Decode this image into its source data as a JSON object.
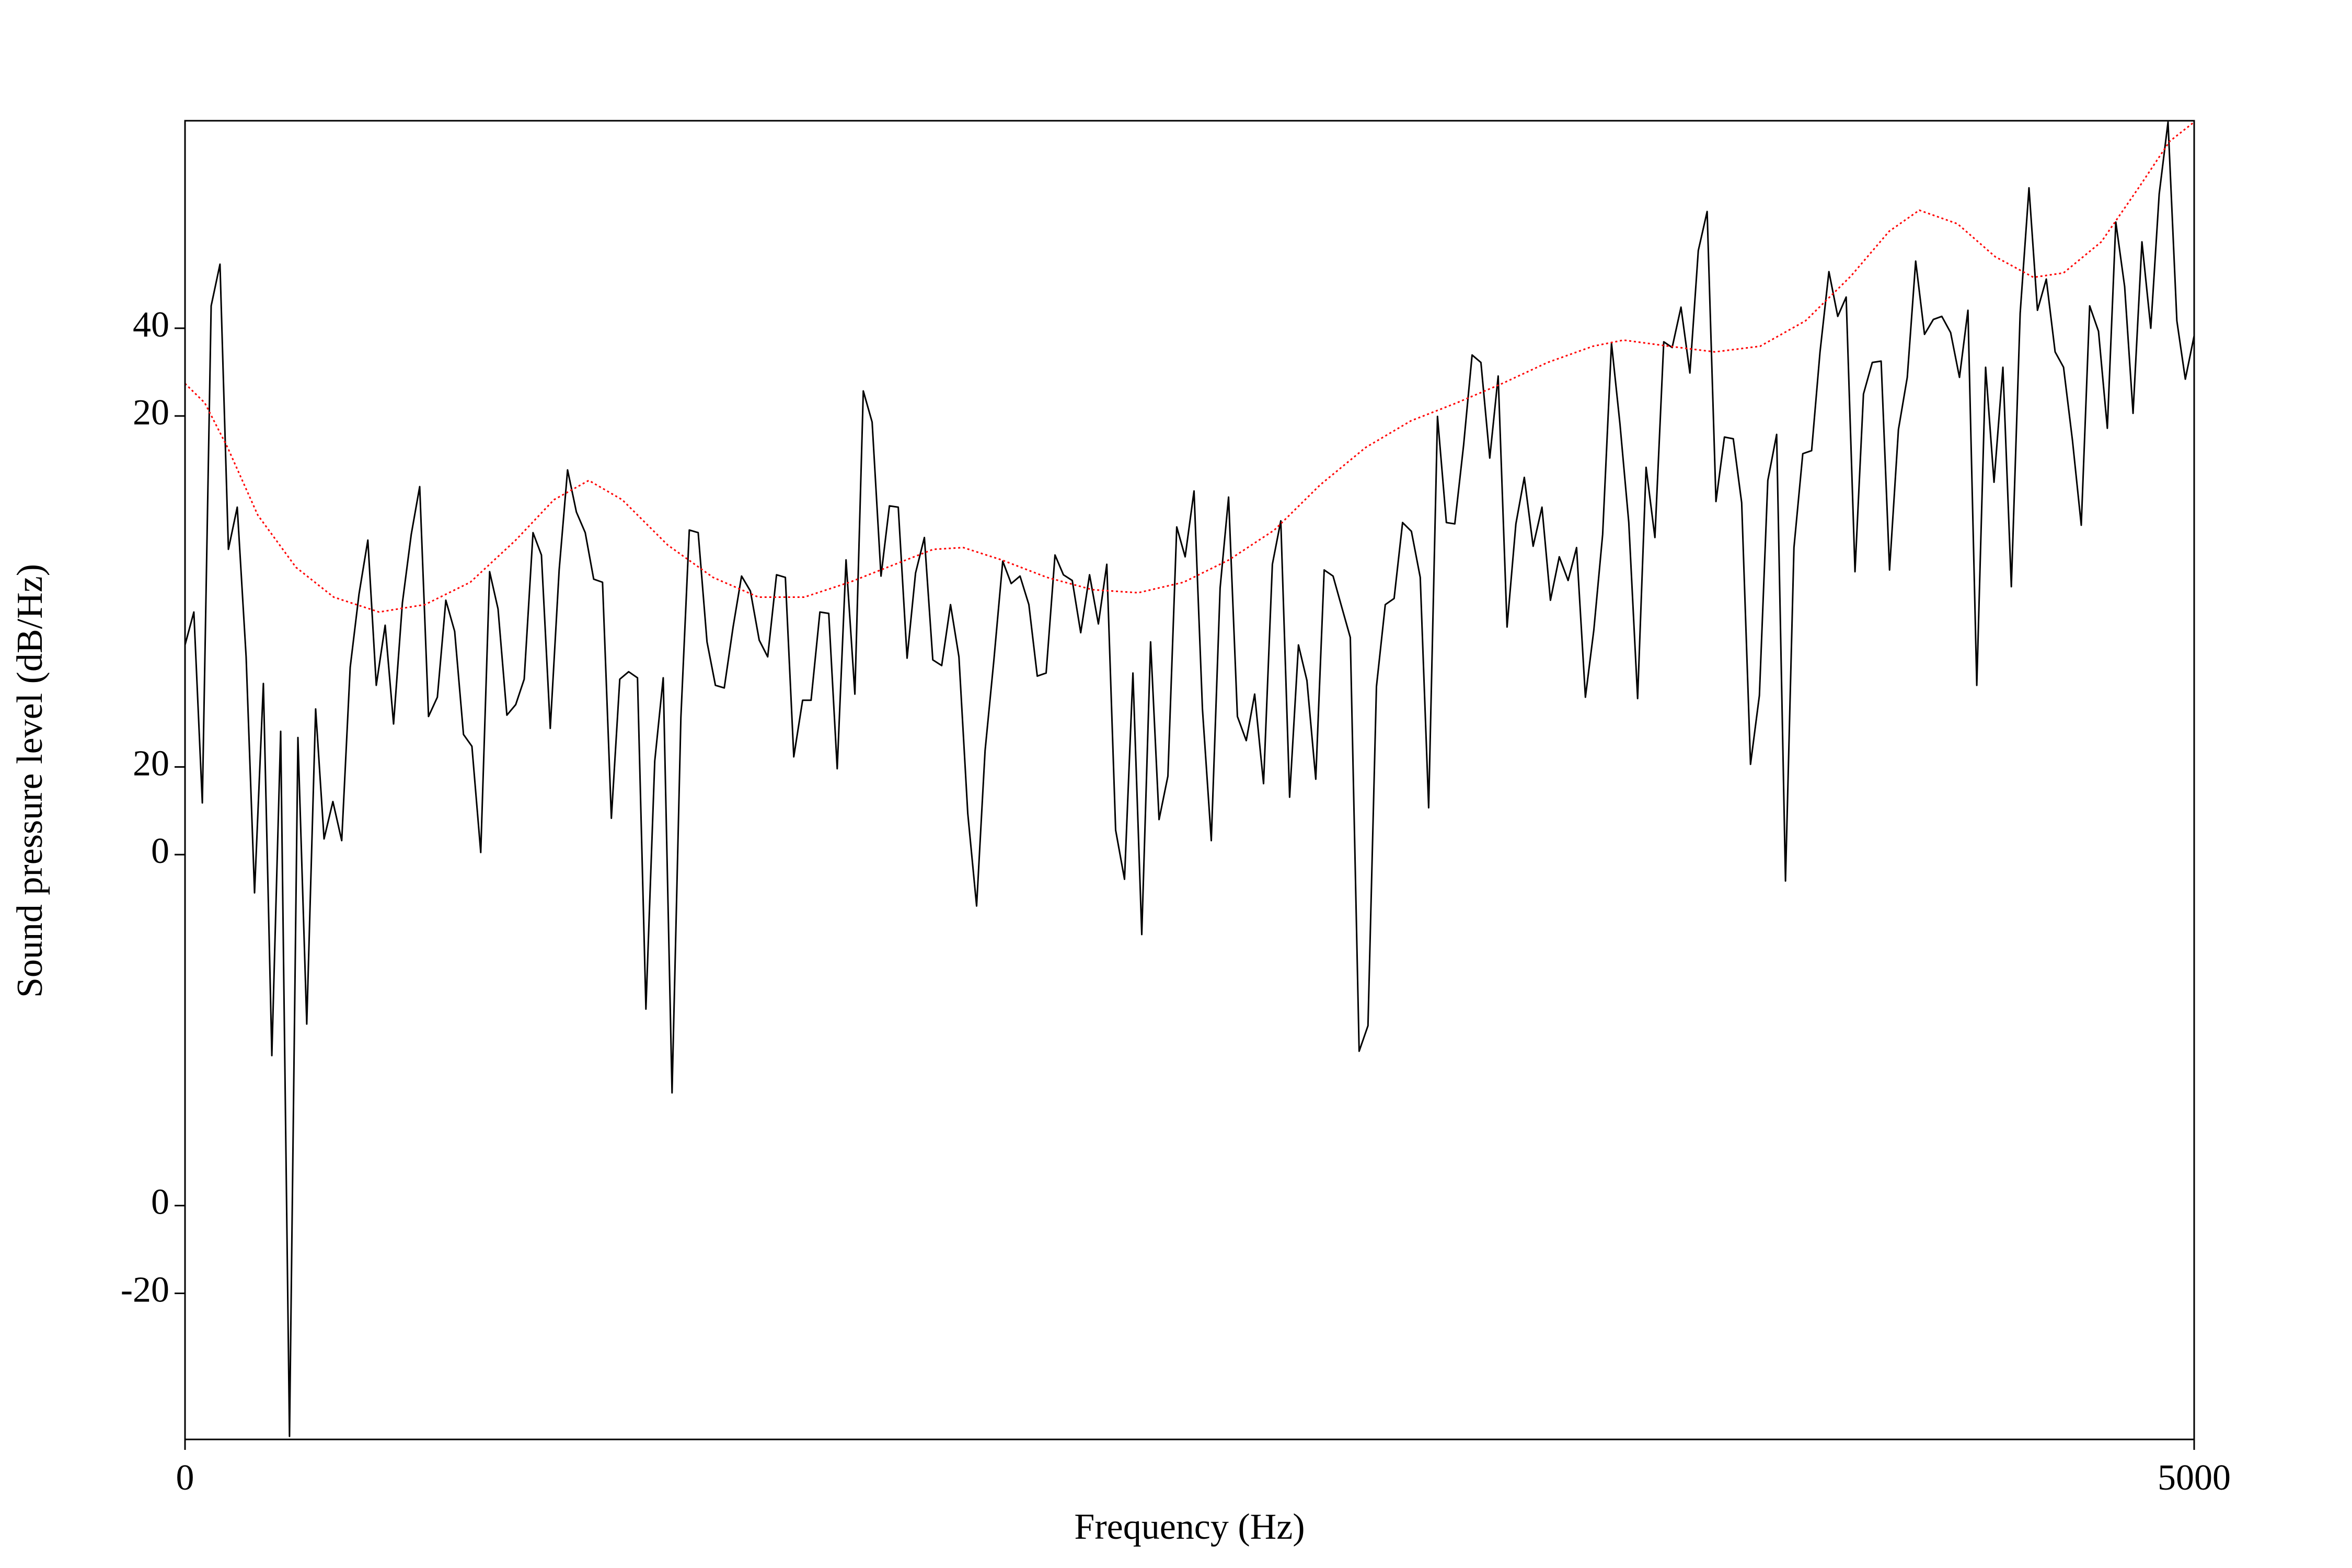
{
  "chart_data": {
    "type": "line",
    "xlabel": "Frequency (Hz)",
    "ylabel": "Sound pressure level (dB/Hz)",
    "xlim": [
      0,
      5000
    ],
    "xticks": [
      0,
      5000
    ],
    "ylim": [
      -213.3,
      87.3
    ],
    "yticks": [
      40,
      20,
      {
        "value": -60,
        "label": "20"
      },
      {
        "value": -80,
        "label": "0"
      },
      {
        "value": -160,
        "label": "0"
      },
      {
        "value": -180,
        "label": "-20"
      }
    ],
    "grid": false,
    "series": [
      {
        "color": "#000000",
        "style": "solid",
        "x": [
          0,
          22,
          43,
          65,
          87,
          108,
          130,
          152,
          173,
          195,
          216,
          238,
          260,
          281,
          303,
          325,
          346,
          368,
          390,
          411,
          433,
          455,
          476,
          498,
          519,
          541,
          563,
          584,
          606,
          628,
          649,
          671,
          693,
          714,
          736,
          758,
          779,
          801,
          823,
          844,
          866,
          887,
          909,
          931,
          952,
          974,
          996,
          1017,
          1039,
          1061,
          1082,
          1104,
          1126,
          1147,
          1169,
          1190,
          1212,
          1234,
          1255,
          1277,
          1299,
          1320,
          1342,
          1364,
          1385,
          1407,
          1429,
          1450,
          1472,
          1494,
          1515,
          1537,
          1558,
          1580,
          1602,
          1623,
          1645,
          1667,
          1688,
          1710,
          1732,
          1753,
          1775,
          1797,
          1818,
          1840,
          1861,
          1883,
          1905,
          1926,
          1948,
          1970,
          1991,
          2013,
          2035,
          2056,
          2078,
          2100,
          2121,
          2143,
          2165,
          2186,
          2208,
          2229,
          2251,
          2273,
          2294,
          2316,
          2338,
          2359,
          2381,
          2403,
          2424,
          2446,
          2468,
          2489,
          2511,
          2532,
          2554,
          2576,
          2597,
          2619,
          2641,
          2662,
          2684,
          2706,
          2727,
          2749,
          2771,
          2792,
          2814,
          2835,
          2857,
          2879,
          2900,
          2922,
          2944,
          2965,
          2987,
          3009,
          3030,
          3052,
          3074,
          3095,
          3117,
          3139,
          3160,
          3182,
          3203,
          3225,
          3247,
          3268,
          3290,
          3312,
          3333,
          3355,
          3377,
          3398,
          3420,
          3442,
          3463,
          3485,
          3506,
          3528,
          3550,
          3571,
          3593,
          3615,
          3636,
          3658,
          3680,
          3701,
          3723,
          3745,
          3766,
          3788,
          3810,
          3831,
          3853,
          3874,
          3896,
          3918,
          3939,
          3961,
          3983,
          4004,
          4026,
          4048,
          4069,
          4091,
          4113,
          4134,
          4156,
          4177,
          4199,
          4221,
          4242,
          4264,
          4286,
          4307,
          4329,
          4351,
          4372,
          4394,
          4416,
          4437,
          4459,
          4481,
          4502,
          4524,
          4545,
          4567,
          4589,
          4610,
          4632,
          4654,
          4675,
          4697,
          4719,
          4740,
          4762,
          4784,
          4805,
          4827,
          4848,
          4870,
          4892,
          4913,
          4935,
          4957,
          4978,
          5000
        ],
        "values": [
          -32.2,
          -24.7,
          -68.2,
          45.1,
          54.6,
          -10.4,
          -0.8,
          -34.9,
          -88.7,
          -41.0,
          -125.8,
          -51.9,
          -212.6,
          -53.3,
          -118.6,
          -46.8,
          -76.4,
          -67.9,
          -76.8,
          -37.3,
          -20.6,
          -8.3,
          -41.4,
          -27.7,
          -50.2,
          -22.6,
          -7.0,
          3.9,
          -48.5,
          -44.1,
          -22.0,
          -29.1,
          -52.6,
          -55.3,
          -79.5,
          -15.5,
          -24.0,
          -48.2,
          -45.8,
          -40.0,
          -6.6,
          -11.7,
          -51.2,
          -15.1,
          7.7,
          -1.9,
          -6.6,
          -17.2,
          -17.9,
          -71.7,
          -40.0,
          -38.3,
          -39.7,
          -115.2,
          -58.7,
          -39.7,
          -134.3,
          -48.8,
          -6.0,
          -6.6,
          -31.5,
          -41.4,
          -42.0,
          -28.1,
          -16.5,
          -19.9,
          -31.1,
          -34.9,
          -16.2,
          -16.8,
          -57.7,
          -44.8,
          -44.8,
          -24.7,
          -25.0,
          -60.4,
          -12.8,
          -43.4,
          25.7,
          18.6,
          -16.5,
          -0.5,
          -0.8,
          -35.2,
          -15.8,
          -7.7,
          -35.6,
          -36.9,
          -23.0,
          -34.9,
          -70.6,
          -91.7,
          -56.3,
          -35.6,
          -13.1,
          -18.2,
          -16.5,
          -23.0,
          -39.3,
          -38.6,
          -11.7,
          -16.2,
          -17.5,
          -29.4,
          -16.2,
          -27.4,
          -13.8,
          -74.4,
          -85.6,
          -38.6,
          -98.2,
          -31.5,
          -72.0,
          -62.1,
          -5.3,
          -12.1,
          2.9,
          -46.8,
          -76.8,
          -19.2,
          1.5,
          -48.5,
          -54.0,
          -43.4,
          -63.8,
          -13.8,
          -3.9,
          -66.9,
          -32.2,
          -40.3,
          -62.8,
          -15.1,
          -16.5,
          -23.7,
          -30.5,
          -124.8,
          -119.0,
          -41.7,
          -23.0,
          -21.6,
          -4.3,
          -6.3,
          -16.8,
          -69.3,
          19.9,
          -4.3,
          -4.6,
          13.4,
          33.9,
          32.2,
          10.4,
          29.1,
          -28.1,
          -4.6,
          6.0,
          -9.7,
          -0.8,
          -22.0,
          -12.1,
          -17.5,
          -10.0,
          -44.1,
          -28.8,
          -7.0,
          36.6,
          18.2,
          -4.3,
          -44.4,
          8.3,
          -7.7,
          36.9,
          35.6,
          44.8,
          29.8,
          57.7,
          66.6,
          0.5,
          15.2,
          14.8,
          0.2,
          -59.4,
          -43.7,
          5.3,
          15.8,
          -86.0,
          -10.0,
          11.4,
          12.1,
          34.6,
          52.9,
          42.7,
          47.1,
          -15.5,
          25.0,
          32.2,
          32.5,
          -15.1,
          16.9,
          28.8,
          55.3,
          38.6,
          42.0,
          42.7,
          39.0,
          28.8,
          44.1,
          -41.4,
          31.1,
          4.9,
          31.1,
          -18.9,
          43.4,
          72.0,
          44.1,
          51.2,
          34.6,
          31.1,
          14.5,
          -4.9,
          45.1,
          39.3,
          17.2,
          64.2,
          49.5,
          20.6,
          59.7,
          40.0,
          70.6,
          87,
          41.7,
          28.4,
          38.3
        ]
      },
      {
        "color": "#ff0000",
        "style": "dotted",
        "x": [
          0,
          49,
          106,
          181,
          276,
          370,
          483,
          597,
          710,
          823,
          918,
          1005,
          1088,
          1201,
          1314,
          1427,
          1541,
          1654,
          1767,
          1862,
          1937,
          2032,
          2145,
          2258,
          2372,
          2485,
          2598,
          2711,
          2825,
          2938,
          3051,
          3165,
          3278,
          3391,
          3504,
          3580,
          3693,
          3807,
          3920,
          4033,
          4146,
          4241,
          4316,
          4411,
          4505,
          4600,
          4675,
          4769,
          4864,
          4939,
          5000
        ],
        "values": [
          27.4,
          23.0,
          12.8,
          -2.6,
          -14.5,
          -21.3,
          -24.7,
          -23.0,
          -17.9,
          -8.3,
          0.9,
          5.3,
          0.9,
          -9.4,
          -16.8,
          -21.3,
          -21.3,
          -17.9,
          -13.8,
          -10.4,
          -10.0,
          -12.8,
          -16.8,
          -19.6,
          -20.3,
          -17.9,
          -12.8,
          -6.0,
          4.3,
          12.8,
          18.9,
          23.0,
          27.4,
          32.2,
          35.9,
          37.3,
          35.9,
          34.6,
          35.9,
          41.7,
          51.9,
          62.1,
          66.9,
          63.8,
          56.3,
          51.6,
          52.6,
          59.7,
          72.3,
          82.6,
          87
        ]
      }
    ]
  }
}
